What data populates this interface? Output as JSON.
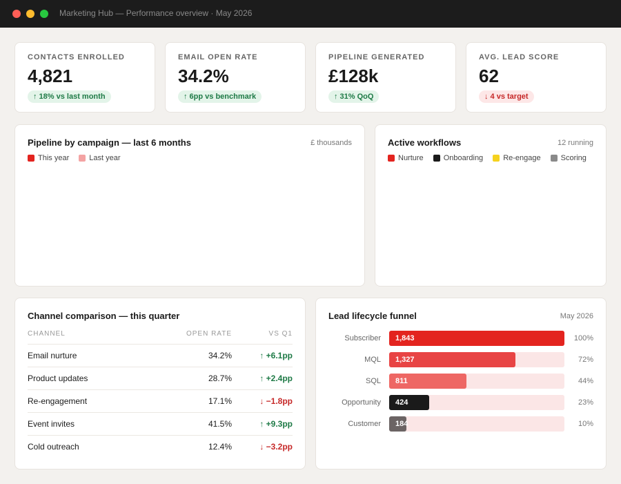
{
  "window": {
    "title": "Marketing Hub — Performance overview · May 2026"
  },
  "kpis": [
    {
      "label": "CONTACTS ENROLLED",
      "value": "4,821",
      "delta": "↑ 18% vs last month",
      "color": "#1e7a46",
      "bg": "#e3f4e9"
    },
    {
      "label": "EMAIL OPEN RATE",
      "value": "34.2%",
      "delta": "↑ 6pp vs benchmark",
      "color": "#1e7a46",
      "bg": "#e3f4e9"
    },
    {
      "label": "PIPELINE GENERATED",
      "value": "£128k",
      "delta": "↑ 31% QoQ",
      "color": "#1e7a46",
      "bg": "#e3f4e9"
    },
    {
      "label": "AVG. LEAD SCORE",
      "value": "62",
      "delta": "↓ 4 vs target",
      "color": "#c62828",
      "bg": "#fde7e7"
    }
  ],
  "pipeline_chart": {
    "title": "Pipeline by campaign — last 6 months",
    "unit": "£ thousands",
    "legend": [
      {
        "name": "This year",
        "color": "#e3241f"
      },
      {
        "name": "Last year",
        "color": "#f4a3a3"
      }
    ]
  },
  "workflows": {
    "title": "Active workflows",
    "status": "12 running",
    "legend": [
      {
        "name": "Nurture",
        "color": "#e3241f"
      },
      {
        "name": "Onboarding",
        "color": "#1a1a1a"
      },
      {
        "name": "Re-engage",
        "color": "#f5d21f"
      },
      {
        "name": "Scoring",
        "color": "#8a8a8a"
      }
    ]
  },
  "channels": {
    "title": "Channel comparison — this quarter",
    "columns": [
      "CHANNEL",
      "OPEN RATE",
      "VS Q1"
    ],
    "rows": [
      [
        "Email nurture",
        "34.2%",
        "↑ +6.1pp"
      ],
      [
        "Product updates",
        "28.7%",
        "↑ +2.4pp"
      ],
      [
        "Re-engagement",
        "17.1%",
        "↓ −1.8pp"
      ],
      [
        "Event invites",
        "41.5%",
        "↑ +9.3pp"
      ],
      [
        "Cold outreach",
        "12.4%",
        "↓ −3.2pp"
      ]
    ],
    "delta_colors": [
      "#1e7a46",
      "#1e7a46",
      "#c62828",
      "#1e7a46",
      "#c62828"
    ]
  },
  "funnel": {
    "title": "Lead lifecycle funnel",
    "period": "May 2026",
    "track_color": "#fbe6e6",
    "stages": [
      {
        "label": "Subscriber",
        "value": 1843,
        "value_label": "1,843",
        "percent": "100%",
        "color": "#e3241f"
      },
      {
        "label": "MQL",
        "value": 1327,
        "value_label": "1,327",
        "percent": "72%",
        "color": "#e84444"
      },
      {
        "label": "SQL",
        "value": 811,
        "value_label": "811",
        "percent": "44%",
        "color": "#ee6764"
      },
      {
        "label": "Opportunity",
        "value": 424,
        "value_label": "424",
        "percent": "23%",
        "color": "#1a1a1a"
      },
      {
        "label": "Customer",
        "value": 184,
        "value_label": "184",
        "percent": "10%",
        "color": "#6b6464"
      }
    ]
  }
}
